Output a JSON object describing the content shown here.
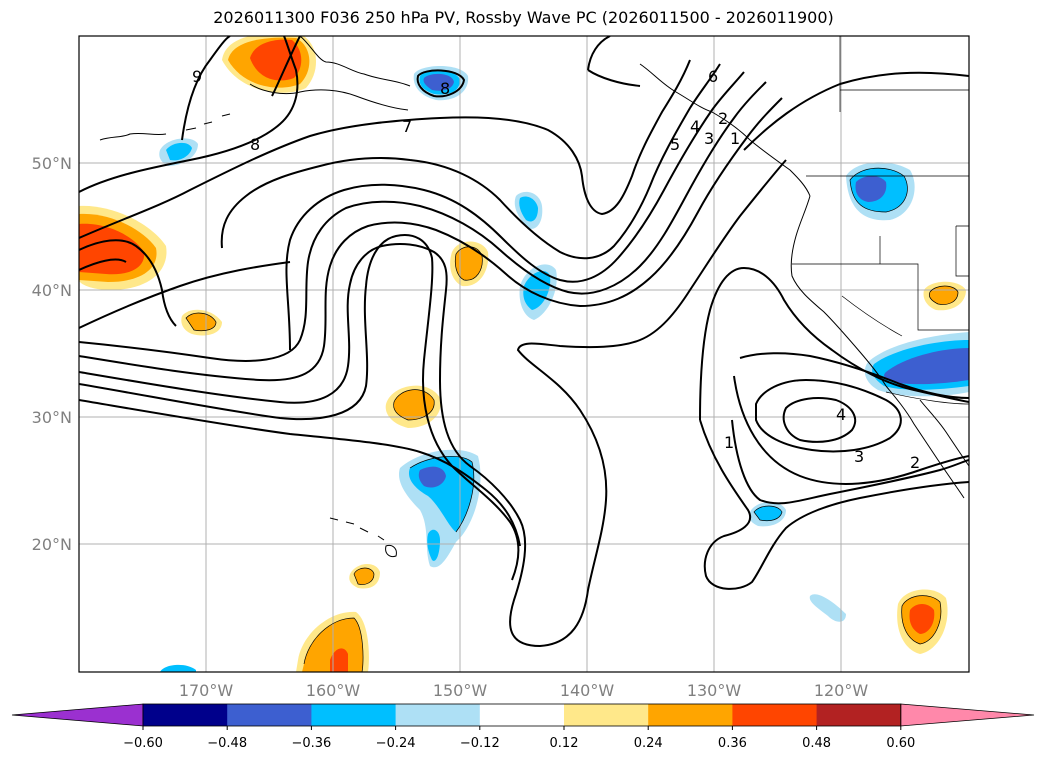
{
  "title": "2026011300 F036 250 hPa PV, Rossby Wave PC (2026011500 - 2026011900)",
  "map": {
    "lat_labels": [
      "50°N",
      "40°N",
      "30°N",
      "20°N"
    ],
    "lon_labels": [
      "170°W",
      "160°W",
      "150°W",
      "140°W",
      "130°W",
      "120°W"
    ],
    "contour_labels": [
      "9",
      "8",
      "8",
      "7",
      "6",
      "5",
      "4",
      "3",
      "2",
      "1",
      "4",
      "3",
      "2",
      "1"
    ]
  },
  "colorbar": {
    "ticks": [
      "−0.60",
      "−0.48",
      "−0.36",
      "−0.24",
      "−0.12",
      "0.12",
      "0.24",
      "0.36",
      "0.48",
      "0.60"
    ],
    "colors": [
      "#9b30d0",
      "#00008b",
      "#3d5fd0",
      "#00bfff",
      "#aee0f5",
      "#ffffff",
      "#ffe88a",
      "#ffa500",
      "#ff4500",
      "#b22222",
      "#ff88aa"
    ]
  },
  "colors": {
    "neg_light": "#aee0f5",
    "neg_mid": "#00bfff",
    "neg_dark": "#3d5fd0",
    "pos_light": "#ffe88a",
    "pos_mid": "#ffa500",
    "pos_dark": "#ff4500",
    "grid": "#b0b0b0"
  }
}
